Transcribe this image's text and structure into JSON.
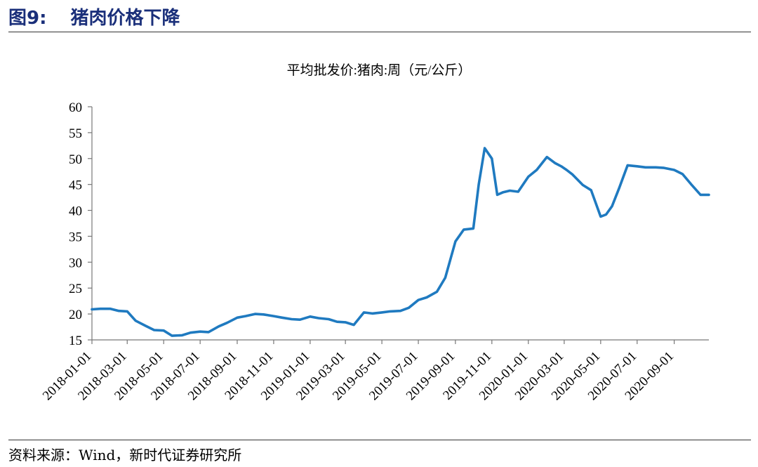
{
  "figure": {
    "number": "图9:",
    "title": "猪肉价格下降",
    "source": "资料来源：Wind，新时代证券研究所"
  },
  "colors": {
    "line": "#1f7ac0",
    "header": "#1a2f7a"
  },
  "chart_data": {
    "type": "line",
    "title": "平均批发价:猪肉:周（元/公斤）",
    "ylim": [
      15,
      60
    ],
    "yticks": [
      15,
      20,
      25,
      30,
      35,
      40,
      45,
      50,
      55,
      60
    ],
    "xlim": [
      "2018-01-01",
      "2020-10-29"
    ],
    "xticks": [
      "2018-01-01",
      "2018-03-01",
      "2018-05-01",
      "2018-07-01",
      "2018-09-01",
      "2018-11-01",
      "2019-01-01",
      "2019-03-01",
      "2019-05-01",
      "2019-07-01",
      "2019-09-01",
      "2019-11-01",
      "2020-01-01",
      "2020-03-01",
      "2020-05-01",
      "2020-07-01",
      "2020-09-01"
    ],
    "grid": false,
    "legend": "none",
    "series": [
      {
        "x": [
          "2018-01-01",
          "2018-01-15",
          "2018-02-01",
          "2018-02-15",
          "2018-03-01",
          "2018-03-15",
          "2018-04-01",
          "2018-04-15",
          "2018-05-01",
          "2018-05-15",
          "2018-06-01",
          "2018-06-15",
          "2018-07-01",
          "2018-07-15",
          "2018-08-01",
          "2018-08-15",
          "2018-09-01",
          "2018-09-15",
          "2018-10-01",
          "2018-10-15",
          "2018-11-01",
          "2018-11-15",
          "2018-12-01",
          "2018-12-15",
          "2019-01-01",
          "2019-01-15",
          "2019-02-01",
          "2019-02-15",
          "2019-03-01",
          "2019-03-15",
          "2019-04-01",
          "2019-04-15",
          "2019-05-01",
          "2019-05-15",
          "2019-06-01",
          "2019-06-15",
          "2019-07-01",
          "2019-07-15",
          "2019-08-01",
          "2019-08-15",
          "2019-09-01",
          "2019-09-15",
          "2019-10-01",
          "2019-10-10",
          "2019-10-20",
          "2019-11-01",
          "2019-11-10",
          "2019-11-20",
          "2019-12-01",
          "2019-12-15",
          "2020-01-01",
          "2020-01-15",
          "2020-02-01",
          "2020-02-15",
          "2020-02-25",
          "2020-03-05",
          "2020-03-15",
          "2020-04-01",
          "2020-04-15",
          "2020-05-01",
          "2020-05-10",
          "2020-05-20",
          "2020-06-01",
          "2020-06-15",
          "2020-07-01",
          "2020-07-15",
          "2020-08-01",
          "2020-08-15",
          "2020-09-01",
          "2020-09-15",
          "2020-10-01",
          "2020-10-15",
          "2020-10-29"
        ],
        "values": [
          20.9,
          21.0,
          21.0,
          20.6,
          20.5,
          18.7,
          17.7,
          16.9,
          16.8,
          15.8,
          15.9,
          16.4,
          16.6,
          16.5,
          17.6,
          18.3,
          19.3,
          19.6,
          20.0,
          19.9,
          19.6,
          19.3,
          19.0,
          18.9,
          19.5,
          19.2,
          19.0,
          18.5,
          18.4,
          17.9,
          20.3,
          20.1,
          20.3,
          20.5,
          20.6,
          21.2,
          22.7,
          23.2,
          24.3,
          27.0,
          34.0,
          36.3,
          36.5,
          45.0,
          52.0,
          50.0,
          43.0,
          43.5,
          43.8,
          43.6,
          46.5,
          47.8,
          50.3,
          49.1,
          48.5,
          47.8,
          46.9,
          44.9,
          43.9,
          38.8,
          39.2,
          40.8,
          44.3,
          48.7,
          48.5,
          48.3,
          48.3,
          48.2,
          47.8,
          47.0,
          44.8,
          43.0,
          43.0
        ]
      }
    ]
  }
}
